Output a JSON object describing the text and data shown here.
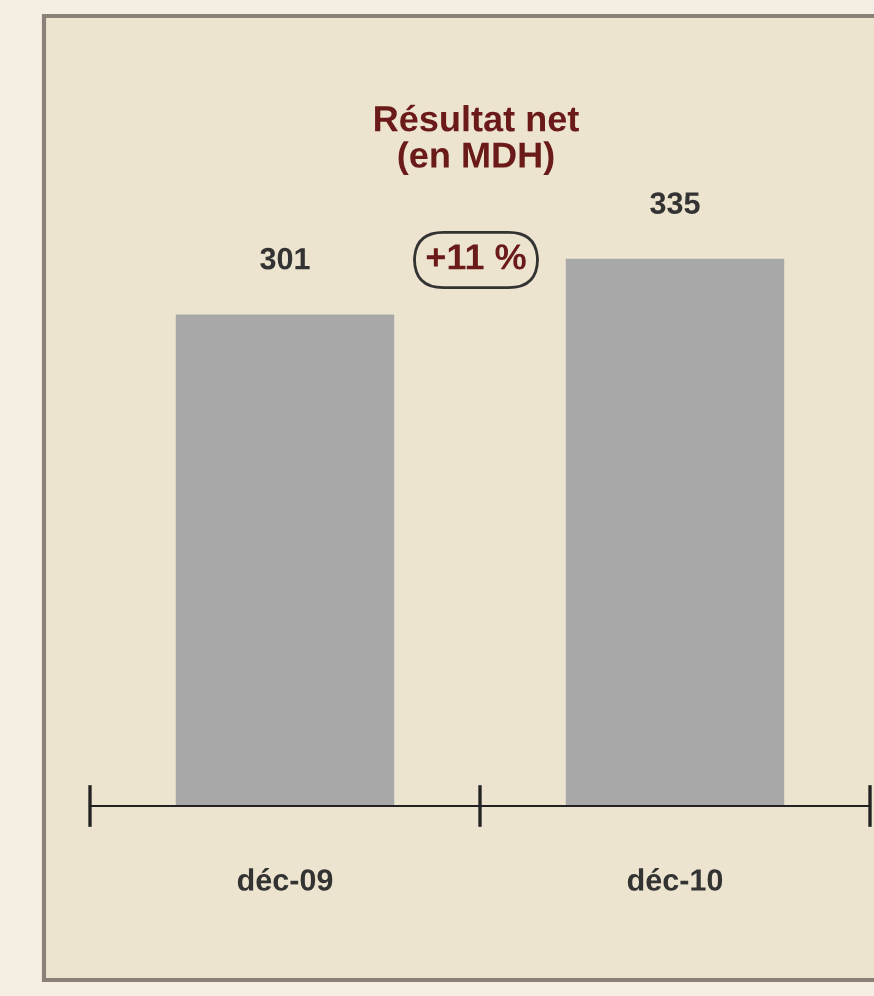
{
  "chart_data": {
    "type": "bar",
    "title": "Résultat net\n(en MDH)",
    "annotations": [
      "+11 %"
    ],
    "categories": [
      "déc-09",
      "déc-10"
    ],
    "values": [
      301,
      335
    ],
    "color": "#a8a8a8",
    "data_labels": true
  }
}
